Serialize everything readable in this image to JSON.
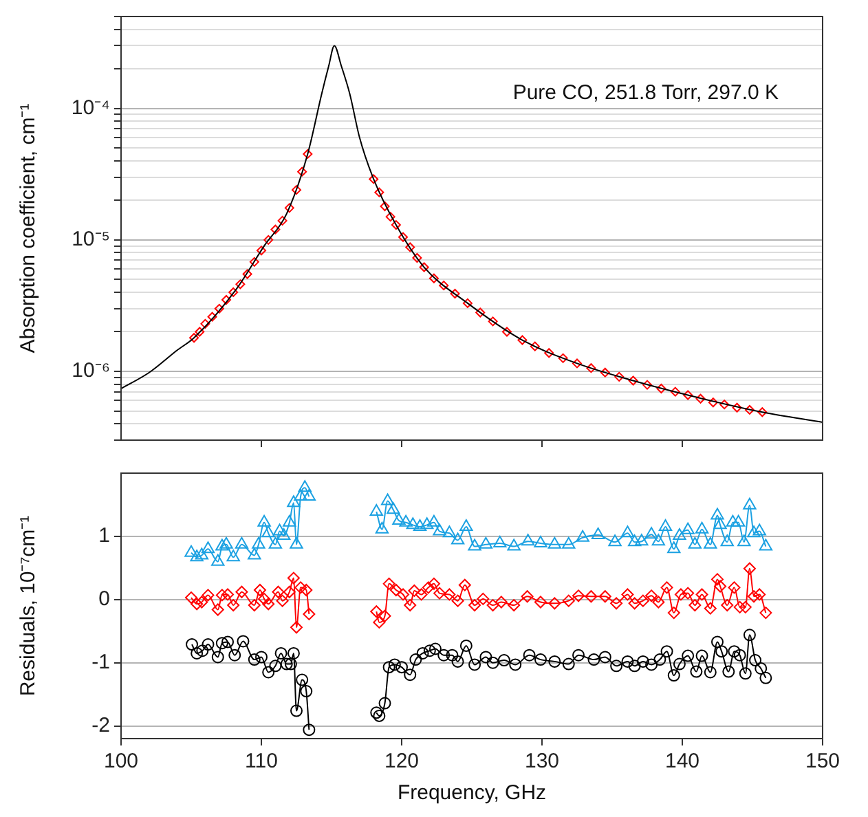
{
  "chart_data": [
    {
      "type": "line",
      "ylabel": "Absorption coefficient, cm⁻¹",
      "annotations": [
        "Pure CO, 251.8 Torr, 297.0 K"
      ],
      "log": "y",
      "grid": "y",
      "legend": false,
      "tick_labels": "y",
      "xlim": [
        100,
        150
      ],
      "xticks": [
        110,
        120,
        130,
        140
      ],
      "ylim": [
        3e-07,
        0.0005
      ],
      "yticks": [
        {
          "value": 3e-07,
          "label": null
        },
        {
          "value": 4e-07,
          "label": null
        },
        {
          "value": 5e-07,
          "label": null
        },
        {
          "value": 6e-07,
          "label": null
        },
        {
          "value": 7e-07,
          "label": null
        },
        {
          "value": 8e-07,
          "label": null
        },
        {
          "value": 9e-07,
          "label": null
        },
        {
          "value": 1e-06,
          "label": "10⁻⁶"
        },
        {
          "value": 2e-06,
          "label": null
        },
        {
          "value": 3e-06,
          "label": null
        },
        {
          "value": 4e-06,
          "label": null
        },
        {
          "value": 5e-06,
          "label": null
        },
        {
          "value": 6e-06,
          "label": null
        },
        {
          "value": 7e-06,
          "label": null
        },
        {
          "value": 8e-06,
          "label": null
        },
        {
          "value": 9e-06,
          "label": null
        },
        {
          "value": 1e-05,
          "label": "10⁻⁵"
        },
        {
          "value": 2e-05,
          "label": null
        },
        {
          "value": 3e-05,
          "label": null
        },
        {
          "value": 4e-05,
          "label": null
        },
        {
          "value": 5e-05,
          "label": null
        },
        {
          "value": 6e-05,
          "label": null
        },
        {
          "value": 7e-05,
          "label": null
        },
        {
          "value": 8e-05,
          "label": null
        },
        {
          "value": 9e-05,
          "label": null
        },
        {
          "value": 0.0001,
          "label": "10⁻⁴"
        },
        {
          "value": 0.0002,
          "label": null
        },
        {
          "value": 0.0003,
          "label": null
        },
        {
          "value": 0.0004,
          "label": null
        },
        {
          "value": 0.0005,
          "label": null
        }
      ],
      "series": [
        {
          "type": "line",
          "color": "#000000",
          "marker": "none",
          "x": [
            100,
            102,
            104,
            105.2,
            108.2,
            110.2,
            111.8,
            113.3,
            114.3,
            114.8,
            115.2,
            115.7,
            116.3,
            117,
            118,
            119.6,
            121.6,
            124.7,
            128.6,
            132.5,
            136.5,
            140.4,
            145.7,
            150
          ],
          "values": [
            7.4e-07,
            9.8e-07,
            1.45e-06,
            1.8e-06,
            4.2e-06,
            9e-06,
            1.58e-05,
            4.5e-05,
            0.000129,
            0.00021,
            0.0003,
            0.00021,
            0.000129,
            6e-05,
            2.9e-05,
            1.3e-05,
            6.2e-06,
            3.3e-06,
            1.73e-06,
            1.15e-06,
            8.5e-07,
            6.6e-07,
            4.9e-07,
            4.1e-07
          ]
        },
        {
          "type": "scatter",
          "color": "#ff0000",
          "marker": "diamond",
          "x": [
            105.2,
            105.6,
            106,
            106.5,
            107,
            107.5,
            108,
            108.5,
            109,
            109.5,
            110,
            110.5,
            111,
            111.5,
            112,
            112.5,
            112.9,
            113.3,
            118,
            118.4,
            118.8,
            119.2,
            119.6,
            120.1,
            120.6,
            121.1,
            121.6,
            122.3,
            123,
            123.8,
            124.7,
            125.6,
            126.5,
            127.5,
            128.6,
            129.5,
            130.5,
            131.5,
            132.5,
            133.5,
            134.5,
            135.5,
            136.5,
            137.5,
            138.5,
            139.5,
            140.4,
            141.3,
            142.2,
            143,
            143.9,
            144.8,
            145.7
          ],
          "values": [
            1.8e-06,
            2e-06,
            2.3e-06,
            2.6e-06,
            3e-06,
            3.5e-06,
            4e-06,
            4.6e-06,
            5.5e-06,
            6.8e-06,
            8.3e-06,
            1e-05,
            1.2e-05,
            1.4e-05,
            1.75e-05,
            2.4e-05,
            3.3e-05,
            4.5e-05,
            2.9e-05,
            2.3e-05,
            1.8e-05,
            1.5e-05,
            1.3e-05,
            1.05e-05,
            8.8e-06,
            7.3e-06,
            6.2e-06,
            5.1e-06,
            4.5e-06,
            3.9e-06,
            3.3e-06,
            2.8e-06,
            2.4e-06,
            2e-06,
            1.73e-06,
            1.55e-06,
            1.38e-06,
            1.26e-06,
            1.15e-06,
            1.06e-06,
            9.8e-07,
            9.1e-07,
            8.5e-07,
            7.9e-07,
            7.4e-07,
            7e-07,
            6.6e-07,
            6.2e-07,
            5.8e-07,
            5.6e-07,
            5.3e-07,
            5.1e-07,
            4.9e-07
          ]
        }
      ]
    },
    {
      "type": "line",
      "xlabel": "Frequency, GHz",
      "ylabel": "Residuals, 10⁻⁷cm⁻¹",
      "grid": "y",
      "legend": false,
      "xlim": [
        100,
        150
      ],
      "xticks": [
        100,
        110,
        120,
        130,
        140,
        150
      ],
      "ylim": [
        -2.2,
        2
      ],
      "yticks": [
        -2,
        -1,
        0,
        1
      ],
      "series": [
        {
          "color": "#1ba1e2",
          "marker": "triangle",
          "x": [
            105.0,
            105.4,
            105.75,
            106.2,
            106.9,
            107.2,
            107.5,
            108.0,
            108.6,
            109.5,
            109.8,
            110.2,
            110.5,
            111.0,
            111.3,
            111.6,
            112.0,
            112.3,
            112.5,
            112.8,
            113.1,
            113.4,
            115.8,
            118.2,
            118.6,
            119.0,
            119.4,
            119.8,
            120.3,
            120.8,
            121.3,
            121.8,
            122.3,
            122.7,
            123.4,
            124.0,
            124.6,
            125.2,
            126.0,
            127.0,
            128.0,
            129.0,
            129.9,
            130.9,
            131.9,
            132.9,
            134.0,
            135.2,
            136.1,
            136.6,
            137.1,
            137.8,
            138.3,
            138.8,
            139.4,
            139.8,
            140.4,
            140.9,
            141.4,
            142.0,
            142.5,
            142.7,
            143.2,
            143.6,
            144.0,
            144.4,
            144.8,
            145.1,
            145.5,
            145.95
          ],
          "values": [
            0.74,
            0.67,
            0.7,
            0.8,
            0.6,
            0.84,
            0.87,
            0.67,
            0.87,
            0.7,
            0.87,
            1.22,
            1.05,
            0.87,
            1.08,
            1.01,
            1.22,
            1.53,
            0.87,
            1.63,
            1.77,
            1.63,
            null,
            1.39,
            1.11,
            1.56,
            1.42,
            1.25,
            1.22,
            1.18,
            1.15,
            1.18,
            1.22,
            1.08,
            1.05,
            0.94,
            1.15,
            0.84,
            0.87,
            0.89,
            0.84,
            0.92,
            0.89,
            0.87,
            0.87,
            0.98,
            1.02,
            0.91,
            1.05,
            0.91,
            0.92,
            1.03,
            0.92,
            1.15,
            0.8,
            1.01,
            1.1,
            0.87,
            1.11,
            0.87,
            1.33,
            1.18,
            0.91,
            1.22,
            1.22,
            0.91,
            1.49,
            1.05,
            1.08,
            0.84
          ]
        },
        {
          "color": "#ff0000",
          "marker": "diamond",
          "x": [
            105.0,
            105.4,
            105.75,
            106.2,
            106.9,
            107.2,
            107.6,
            108.0,
            108.6,
            109.5,
            109.9,
            110.2,
            110.5,
            111.2,
            111.5,
            112.0,
            112.3,
            112.5,
            112.8,
            113.2,
            113.4,
            115.8,
            118.2,
            118.4,
            118.8,
            119.1,
            119.6,
            120.1,
            120.6,
            120.9,
            121.4,
            121.9,
            122.3,
            122.7,
            123.4,
            124.0,
            124.5,
            125.2,
            125.8,
            126.5,
            127.1,
            128.0,
            128.95,
            129.9,
            130.9,
            131.9,
            132.6,
            133.5,
            134.5,
            135.3,
            136.1,
            136.6,
            137.2,
            137.8,
            138.3,
            138.9,
            139.4,
            139.9,
            140.4,
            140.9,
            141.4,
            142.0,
            142.5,
            142.7,
            143.2,
            143.7,
            144.1,
            144.5,
            144.8,
            145.1,
            145.5,
            145.95
          ],
          "values": [
            0.03,
            -0.07,
            -0.04,
            0.07,
            -0.16,
            0.07,
            0.08,
            -0.09,
            0.12,
            -0.09,
            0.15,
            0.01,
            -0.07,
            0.12,
            -0.02,
            0.12,
            0.34,
            -0.44,
            0.19,
            0.15,
            -0.23,
            null,
            -0.19,
            -0.36,
            -0.26,
            0.25,
            0.15,
            0.08,
            -0.09,
            0.14,
            0.08,
            0.19,
            0.25,
            0.1,
            0.08,
            -0.02,
            0.23,
            -0.09,
            0.01,
            -0.09,
            -0.04,
            -0.09,
            0.05,
            -0.04,
            -0.06,
            -0.02,
            0.06,
            0.05,
            0.05,
            -0.06,
            0.08,
            -0.06,
            -0.02,
            0.06,
            -0.04,
            0.19,
            -0.21,
            0.08,
            0.1,
            -0.09,
            0.08,
            -0.14,
            0.32,
            0.21,
            -0.09,
            0.19,
            -0.12,
            -0.12,
            0.49,
            0.05,
            0.08,
            -0.21
          ]
        },
        {
          "color": "#000000",
          "marker": "circle",
          "x": [
            105.05,
            105.4,
            105.8,
            106.2,
            106.9,
            107.2,
            107.6,
            108.1,
            108.7,
            109.5,
            110.0,
            110.5,
            111.0,
            111.4,
            111.8,
            112.1,
            112.3,
            112.5,
            112.9,
            113.2,
            113.4,
            115.8,
            118.2,
            118.4,
            118.8,
            119.1,
            119.5,
            120.0,
            120.6,
            121.0,
            121.5,
            122.0,
            122.4,
            123.0,
            123.6,
            124.0,
            124.6,
            125.2,
            126.0,
            126.5,
            127.3,
            128.1,
            129.1,
            129.9,
            130.9,
            131.9,
            132.6,
            133.7,
            134.5,
            135.3,
            136.1,
            136.6,
            137.2,
            137.8,
            138.4,
            138.9,
            139.4,
            139.8,
            140.4,
            141.0,
            141.4,
            142.0,
            142.5,
            142.8,
            143.3,
            143.7,
            144.1,
            144.5,
            144.8,
            145.2,
            145.6,
            145.95
          ],
          "values": [
            -0.71,
            -0.85,
            -0.81,
            -0.71,
            -0.91,
            -0.69,
            -0.67,
            -0.88,
            -0.66,
            -0.95,
            -0.91,
            -1.15,
            -1.05,
            -0.85,
            -1.02,
            -1.02,
            -0.85,
            -1.76,
            -1.27,
            -1.45,
            -2.06,
            null,
            -1.79,
            -1.84,
            -1.64,
            -1.07,
            -1.03,
            -1.07,
            -1.19,
            -0.95,
            -0.85,
            -0.81,
            -0.78,
            -0.88,
            -0.88,
            -0.98,
            -0.73,
            -1.03,
            -0.91,
            -1.0,
            -0.96,
            -1.03,
            -0.88,
            -0.95,
            -0.98,
            -1.02,
            -0.88,
            -0.95,
            -0.91,
            -1.05,
            -0.98,
            -1.05,
            -0.98,
            -1.03,
            -0.95,
            -0.82,
            -1.2,
            -1.02,
            -0.89,
            -1.14,
            -0.89,
            -1.15,
            -0.67,
            -0.82,
            -1.14,
            -0.82,
            -0.88,
            -1.17,
            -0.56,
            -0.96,
            -1.09,
            -1.24
          ]
        }
      ]
    }
  ]
}
